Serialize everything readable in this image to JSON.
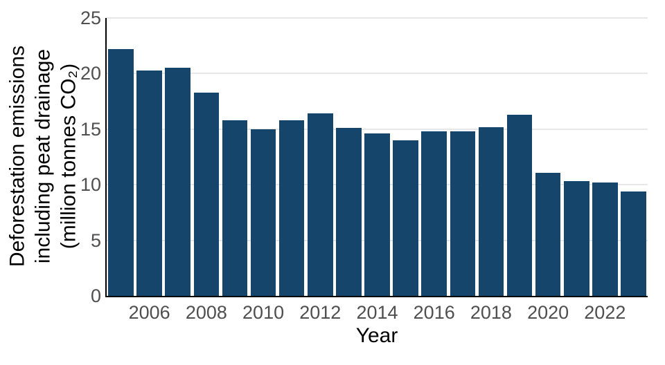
{
  "chart_data": {
    "type": "bar",
    "title": "",
    "xlabel": "Year",
    "ylabel_lines": [
      "Deforestation emissions",
      "including peat drainage",
      "(million tonnes CO₂)"
    ],
    "categories": [
      2005,
      2006,
      2007,
      2008,
      2009,
      2010,
      2011,
      2012,
      2013,
      2014,
      2015,
      2016,
      2017,
      2018,
      2019,
      2020,
      2021,
      2022,
      2023
    ],
    "values": [
      22.2,
      20.3,
      20.5,
      18.3,
      15.8,
      15.0,
      15.8,
      16.4,
      15.1,
      14.6,
      14.0,
      14.8,
      14.8,
      15.2,
      16.3,
      11.1,
      10.3,
      10.2,
      9.4
    ],
    "xticks": [
      2006,
      2008,
      2010,
      2012,
      2014,
      2016,
      2018,
      2020,
      2022
    ],
    "yticks": [
      0,
      5,
      10,
      15,
      20,
      25
    ],
    "ylim": [
      0,
      25
    ],
    "grid": "horizontal-major-only",
    "legend": "none",
    "colors": {
      "bar": "#15456B",
      "grid": "#e7e7e7",
      "axis": "#000000",
      "tick_label": "#4f4f4f",
      "axis_label": "#000000",
      "background": "#ffffff"
    }
  }
}
